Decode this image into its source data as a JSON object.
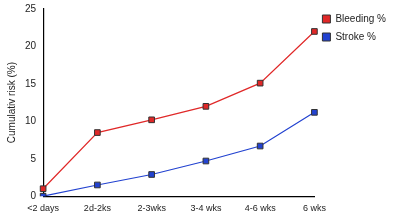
{
  "chart_data": {
    "type": "line",
    "y_label": "Cumulativ risk (%)",
    "categories": [
      "<2 days",
      "2d-2ks",
      "2-3wks",
      "3-4 wks",
      "4-6 wks",
      "6 wks"
    ],
    "series": [
      {
        "name": "Bleeding %",
        "color": "#e02828",
        "marker": "square",
        "line_style": "solid",
        "values": [
          1,
          8.5,
          10.2,
          12,
          15.1,
          22
        ]
      },
      {
        "name": "Stroke %",
        "color": "#2242d0",
        "marker": "square",
        "line_style": "solid",
        "values": [
          0,
          1.5,
          2.9,
          4.7,
          6.7,
          11.2
        ]
      }
    ],
    "ylim": [
      0,
      25
    ],
    "yticks": [
      0,
      5,
      10,
      15,
      20,
      25
    ],
    "grid": false,
    "legend": "upper right"
  }
}
